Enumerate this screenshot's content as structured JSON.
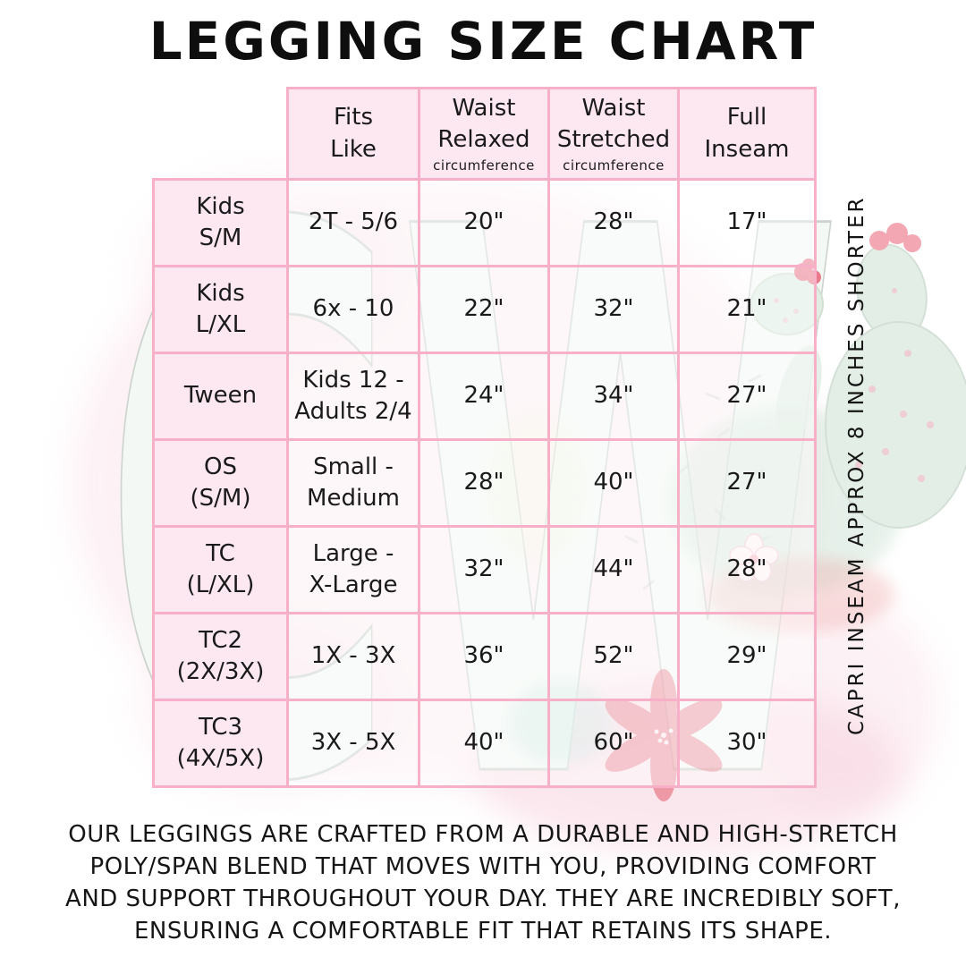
{
  "title": "LEGGING SIZE CHART",
  "side_note": "CAPRI INSEAM APPROX 8 INCHES SHORTER",
  "description": "OUR LEGGINGS ARE CRAFTED FROM A DURABLE AND HIGH-STRETCH\nPOLY/SPAN BLEND THAT MOVES WITH YOU, PROVIDING COMFORT\nAND SUPPORT THROUGHOUT YOUR DAY. THEY ARE INCREDIBLY SOFT,\nENSURING A COMFORTABLE FIT THAT RETAINS ITS SHAPE.",
  "watermark_initials": "CW",
  "colors": {
    "table_border": "#f7b0c7",
    "header_fill": "#fde8f1",
    "text": "#1a1a1a",
    "watermark_mint": "#e3efe6",
    "watermark_pink_wash": "#f8d2de",
    "flower_red": "#e4596c"
  },
  "chart_data": {
    "type": "table",
    "title": "LEGGING SIZE CHART",
    "columns": [
      {
        "label": "Fits\nLike",
        "sub": ""
      },
      {
        "label": "Waist\nRelaxed",
        "sub": "circumference"
      },
      {
        "label": "Waist\nStretched",
        "sub": "circumference"
      },
      {
        "label": "Full\nInseam",
        "sub": ""
      }
    ],
    "rows": [
      {
        "size": "Kids\nS/M",
        "cells": [
          "2T - 5/6",
          "20\"",
          "28\"",
          "17\""
        ]
      },
      {
        "size": "Kids\nL/XL",
        "cells": [
          "6x - 10",
          "22\"",
          "32\"",
          "21\""
        ]
      },
      {
        "size": "Tween",
        "cells": [
          "Kids 12 -\nAdults 2/4",
          "24\"",
          "34\"",
          "27\""
        ]
      },
      {
        "size": "OS\n(S/M)",
        "cells": [
          "Small -\nMedium",
          "28\"",
          "40\"",
          "27\""
        ]
      },
      {
        "size": "TC\n(L/XL)",
        "cells": [
          "Large -\nX-Large",
          "32\"",
          "44\"",
          "28\""
        ]
      },
      {
        "size": "TC2\n(2X/3X)",
        "cells": [
          "1X - 3X",
          "36\"",
          "52\"",
          "29\""
        ]
      },
      {
        "size": "TC3\n(4X/5X)",
        "cells": [
          "3X - 5X",
          "40\"",
          "60\"",
          "30\""
        ]
      }
    ]
  }
}
